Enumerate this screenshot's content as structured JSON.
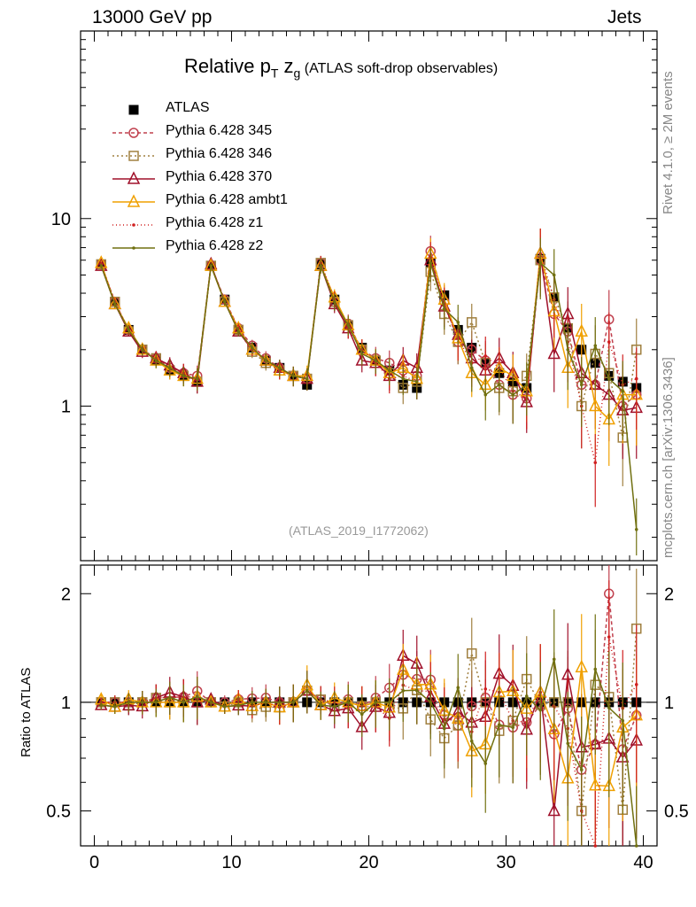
{
  "header": {
    "energy": "13000 GeV pp",
    "category": "Jets"
  },
  "sidebar": {
    "rivet": "Rivet 4.1.0, ≥ 2M events",
    "mcplots": "mcplots.cern.ch [arXiv:1306.3436]"
  },
  "plot": {
    "title_main": "Relative p",
    "title_sub_T": "T",
    "title_z": " z",
    "title_sub_g": "g",
    "title_rest": " (ATLAS soft-drop observables)",
    "analysis_tag": "(ATLAS_2019_I1772062)"
  },
  "ratio_axis_label": "Ratio to ATLAS",
  "chart_data": {
    "type": "line",
    "xlim": [
      -1,
      41
    ],
    "ylim_main": [
      0.15,
      100
    ],
    "ylim_ratio": [
      0.4,
      2.4
    ],
    "y_scale": "log",
    "x_ticks": [
      "0",
      "10",
      "20",
      "30",
      "40"
    ],
    "y_ticks_main": [
      "1",
      "10"
    ],
    "y_ticks_ratio": [
      "0.5",
      "1",
      "2"
    ],
    "x": [
      0.5,
      1.5,
      2.5,
      3.5,
      4.5,
      5.5,
      6.5,
      7.5,
      8.5,
      9.5,
      10.5,
      11.5,
      12.5,
      13.5,
      14.5,
      15.5,
      16.5,
      17.5,
      18.5,
      19.5,
      20.5,
      21.5,
      22.5,
      23.5,
      24.5,
      25.5,
      26.5,
      27.5,
      28.5,
      29.5,
      30.5,
      31.5,
      32.5,
      33.5,
      34.5,
      35.5,
      36.5,
      37.5,
      38.5,
      39.5
    ],
    "series": [
      {
        "name": "ATLAS",
        "color": "#000000",
        "marker": "square-filled",
        "dash": "none",
        "values": [
          5.7,
          3.6,
          2.55,
          2.0,
          1.75,
          1.55,
          1.45,
          1.35,
          5.6,
          3.7,
          2.55,
          2.05,
          1.75,
          1.6,
          1.45,
          1.3,
          5.7,
          3.7,
          2.7,
          2.05,
          1.75,
          1.55,
          1.3,
          1.25,
          5.8,
          3.9,
          2.55,
          2.05,
          1.7,
          1.5,
          1.35,
          1.25,
          6.1,
          3.8,
          2.6,
          2.0,
          1.7,
          1.45,
          1.35,
          1.25
        ]
      },
      {
        "name": "Pythia 6.428 345",
        "color": "#c0404e",
        "marker": "circle-open",
        "dash": "4,3",
        "values": [
          5.7,
          3.6,
          2.55,
          2.0,
          1.8,
          1.6,
          1.5,
          1.45,
          5.6,
          3.7,
          2.6,
          2.1,
          1.8,
          1.6,
          1.45,
          1.4,
          5.8,
          3.6,
          2.75,
          2.0,
          1.8,
          1.7,
          1.55,
          1.45,
          6.7,
          3.6,
          2.2,
          2.0,
          1.75,
          1.3,
          1.15,
          1.1,
          6.0,
          3.1,
          2.5,
          1.3,
          1.3,
          2.9,
          1.0,
          1.15
        ]
      },
      {
        "name": "Pythia 6.428 346",
        "color": "#a08040",
        "marker": "square-open",
        "dash": "2,3",
        "values": [
          5.7,
          3.6,
          2.5,
          2.0,
          1.8,
          1.55,
          1.45,
          1.35,
          5.6,
          3.6,
          2.55,
          1.95,
          1.7,
          1.55,
          1.45,
          1.4,
          5.8,
          3.6,
          2.7,
          2.0,
          1.75,
          1.5,
          1.25,
          1.35,
          5.2,
          3.1,
          2.2,
          2.8,
          1.7,
          1.25,
          1.2,
          1.45,
          6.0,
          3.8,
          2.6,
          1.0,
          1.9,
          1.5,
          0.68,
          2.0
        ]
      },
      {
        "name": "Pythia 6.428 370",
        "color": "#a0102a",
        "marker": "triangle-open",
        "dash": "none",
        "values": [
          5.6,
          3.5,
          2.5,
          1.95,
          1.8,
          1.65,
          1.5,
          1.35,
          5.7,
          3.6,
          2.5,
          2.0,
          1.75,
          1.6,
          1.45,
          1.4,
          5.6,
          3.5,
          2.6,
          1.75,
          1.7,
          1.45,
          1.75,
          1.6,
          6.0,
          3.4,
          2.4,
          1.8,
          1.55,
          1.8,
          1.5,
          1.05,
          6.5,
          1.9,
          3.1,
          1.5,
          1.3,
          1.15,
          0.95,
          0.98
        ]
      },
      {
        "name": "Pythia 6.428 ambt1",
        "color": "#f0a000",
        "marker": "triangle-open",
        "dash": "none",
        "values": [
          5.8,
          3.5,
          2.6,
          2.0,
          1.75,
          1.55,
          1.45,
          1.4,
          5.6,
          3.6,
          2.6,
          2.0,
          1.75,
          1.55,
          1.45,
          1.45,
          5.6,
          3.8,
          2.7,
          2.0,
          1.75,
          1.5,
          1.6,
          1.4,
          6.5,
          3.7,
          2.3,
          1.5,
          1.3,
          1.6,
          1.45,
          1.2,
          6.5,
          3.2,
          1.6,
          2.5,
          1.0,
          0.85,
          1.15,
          1.15
        ]
      },
      {
        "name": "Pythia 6.428 z1",
        "color": "#d02020",
        "marker": "dot",
        "dash": "1,3",
        "values": [
          5.7,
          3.6,
          2.55,
          2.0,
          1.8,
          1.6,
          1.5,
          1.4,
          5.6,
          3.6,
          2.6,
          2.0,
          1.75,
          1.55,
          1.45,
          1.4,
          5.8,
          3.7,
          2.6,
          2.0,
          1.7,
          1.4,
          1.45,
          1.35,
          6.2,
          3.5,
          2.3,
          1.7,
          1.85,
          1.6,
          1.2,
          1.1,
          6.5,
          3.7,
          2.2,
          1.0,
          0.5,
          2.2,
          1.3,
          1.4
        ]
      },
      {
        "name": "Pythia 6.428 z2",
        "color": "#707010",
        "marker": "dot",
        "dash": "none",
        "values": [
          5.6,
          3.5,
          2.55,
          2.0,
          1.75,
          1.6,
          1.45,
          1.4,
          5.6,
          3.6,
          2.5,
          2.05,
          1.75,
          1.6,
          1.45,
          1.4,
          5.6,
          3.6,
          2.7,
          1.9,
          1.75,
          1.55,
          1.4,
          1.35,
          5.8,
          3.3,
          2.8,
          1.6,
          1.15,
          1.3,
          1.15,
          1.3,
          5.8,
          5.0,
          2.0,
          1.3,
          2.1,
          1.4,
          1.2,
          0.22
        ]
      }
    ]
  }
}
